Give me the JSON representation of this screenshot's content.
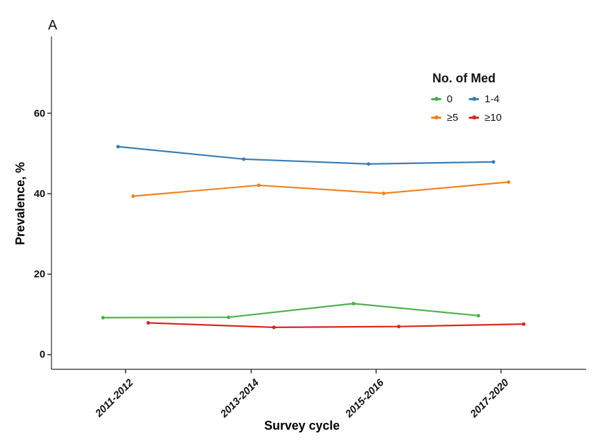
{
  "panel_label": "A",
  "chart_data": {
    "type": "line",
    "title": "",
    "xlabel": "Survey cycle",
    "ylabel": "Prevalence, %",
    "categories": [
      "2011-2012",
      "2013-2014",
      "2015-2016",
      "2017-2020"
    ],
    "series": [
      {
        "name": "0",
        "color": "#4DAF4A",
        "values": [
          9.2,
          9.3,
          12.7,
          9.7
        ]
      },
      {
        "name": "1-4",
        "color": "#377EB8",
        "values": [
          51.7,
          48.6,
          47.4,
          47.9
        ]
      },
      {
        "name": "≥5",
        "color": "#F0821E",
        "values": [
          39.4,
          42.1,
          40.1,
          42.9
        ]
      },
      {
        "name": "≥10",
        "color": "#DB241D",
        "values": [
          7.9,
          6.8,
          7.0,
          7.6
        ]
      }
    ],
    "yticks": [
      0,
      20,
      40,
      60
    ],
    "ylim": [
      0,
      79
    ],
    "legend_title": "No. of Med",
    "legend_position": "top-right-inside",
    "grid": false,
    "axis_color": "#4a4a4a",
    "marker_style": "line-with-dot",
    "x_dodge_note": "series horizontally dodged around each survey-cycle tick"
  }
}
